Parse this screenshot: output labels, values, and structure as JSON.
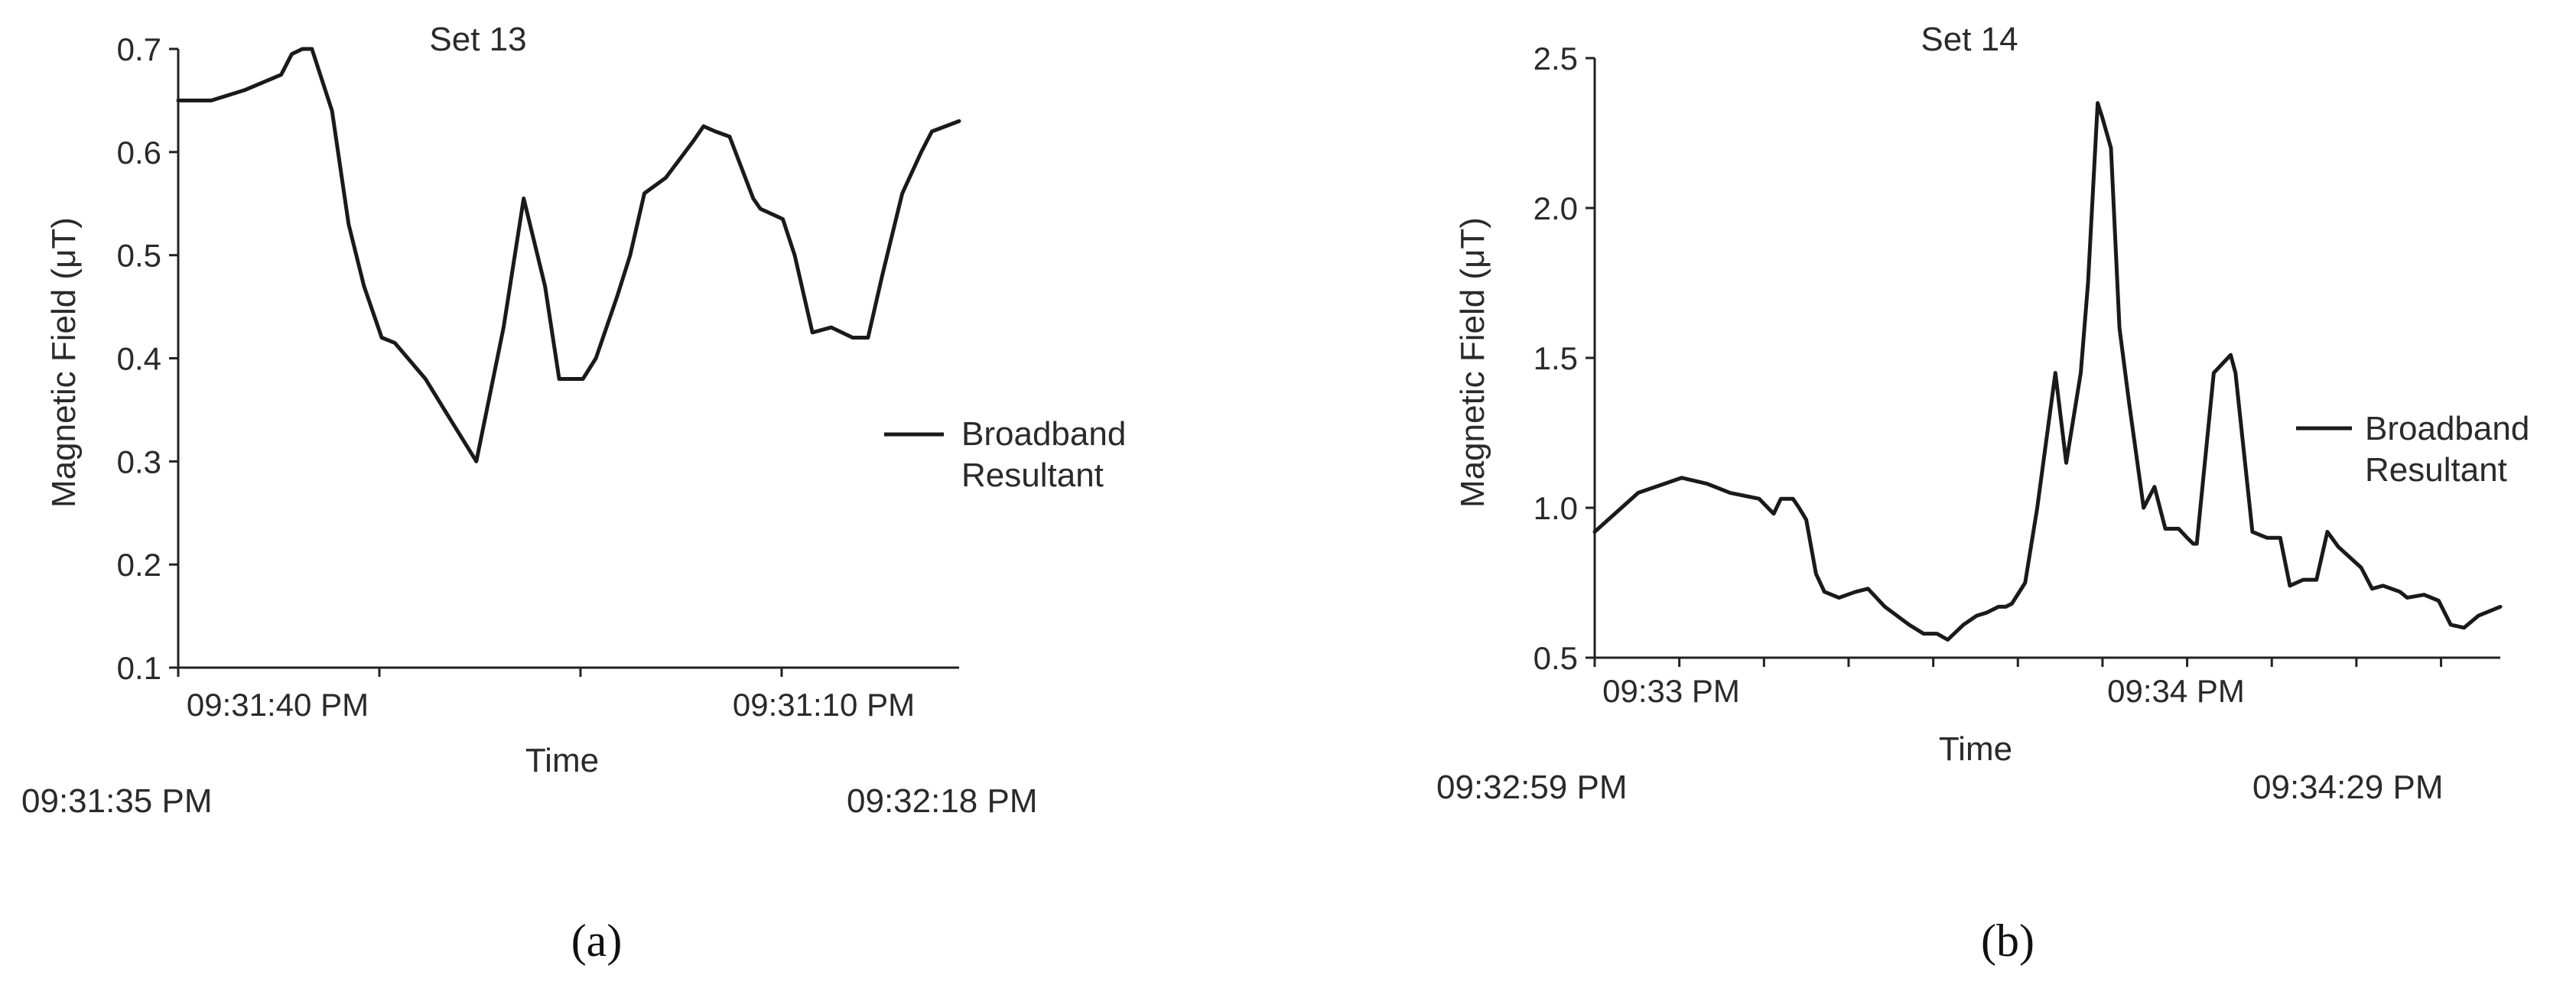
{
  "chart_data": [
    {
      "type": "line",
      "title": "Set 13",
      "xlabel": "Time",
      "ylabel": "Magnetic Field (μT)",
      "ylim": [
        0.1,
        0.7
      ],
      "y_ticks": [
        "0.1",
        "0.2",
        "0.3",
        "0.4",
        "0.5",
        "0.6",
        "0.7"
      ],
      "x_tick_labels": [
        "09:31:40 PM",
        "09:31:10 PM"
      ],
      "time_range": {
        "start": "09:31:35 PM",
        "end": "09:32:18 PM"
      },
      "legend": {
        "line1": "Broadband",
        "line2": "Resultant",
        "placement": "right"
      },
      "caption": "(a)",
      "series": [
        {
          "legend": "Broadband Resultant",
          "x": [
            0,
            2.8,
            5.6,
            8.7,
            9.6,
            10.5,
            11.3,
            13,
            14.4,
            15.7,
            17.2,
            18.3,
            20.9,
            22.5,
            25.2,
            27.5,
            29.2,
            31,
            32.2,
            34.2,
            35.3,
            37.1,
            38.2,
            39.4,
            41.2,
            43.5,
            44.4,
            45.4,
            46.6,
            48.6,
            49.2,
            51.1,
            52.1,
            53.6,
            55.2,
            57,
            58.3,
            59.5,
            61.2,
            62.8,
            63.7,
            66
          ],
          "y": [
            0.65,
            0.65,
            0.66,
            0.675,
            0.695,
            0.7,
            0.7,
            0.64,
            0.53,
            0.47,
            0.42,
            0.415,
            0.38,
            0.35,
            0.3,
            0.43,
            0.555,
            0.47,
            0.38,
            0.38,
            0.4,
            0.46,
            0.5,
            0.56,
            0.575,
            0.61,
            0.625,
            0.62,
            0.615,
            0.555,
            0.545,
            0.535,
            0.5,
            0.425,
            0.43,
            0.42,
            0.42,
            0.48,
            0.56,
            0.6,
            0.62,
            0.63
          ]
        }
      ]
    },
    {
      "type": "line",
      "title": "Set 14",
      "xlabel": "Time",
      "ylabel": "Magnetic Field (μT)",
      "ylim": [
        0.5,
        2.5
      ],
      "y_ticks": [
        "0.5",
        "1.0",
        "1.5",
        "2.0",
        "2.5"
      ],
      "x_tick_labels": [
        "09:33 PM",
        "09:34 PM"
      ],
      "time_range": {
        "start": "09:32:59 PM",
        "end": "09:34:29 PM"
      },
      "legend": {
        "line1": "Broadband",
        "line2": "Resultant",
        "placement": "right"
      },
      "caption": "(b)",
      "series": [
        {
          "legend": "Broadband Resultant",
          "x": [
            0,
            3.6,
            7.2,
            9.3,
            11.2,
            13.6,
            14.8,
            15.4,
            16.4,
            16.9,
            17.5,
            18.3,
            19,
            20.2,
            21.6,
            22.6,
            24,
            26,
            27.2,
            28.3,
            29.2,
            30.5,
            31.6,
            32.4,
            33.4,
            34,
            34.5,
            35.6,
            36.6,
            38.1,
            39,
            40.2,
            40.8,
            41.6,
            42,
            42.7,
            43.4,
            44.2,
            45.4,
            46.3,
            47.2,
            48.3,
            49,
            49.5,
            49.8,
            51.2,
            52.6,
            53,
            54.4,
            55.6,
            56.7,
            57.5,
            58.6,
            59.7,
            60.6,
            61.5,
            63.4,
            64.3,
            65.2,
            66.6,
            67.2,
            68.6,
            69.8,
            70.8,
            71.9,
            73.1,
            74.9
          ],
          "y": [
            0.92,
            1.05,
            1.1,
            1.08,
            1.05,
            1.03,
            0.98,
            1.03,
            1.03,
            1.0,
            0.96,
            0.78,
            0.72,
            0.7,
            0.72,
            0.73,
            0.67,
            0.61,
            0.58,
            0.58,
            0.56,
            0.61,
            0.64,
            0.65,
            0.67,
            0.67,
            0.68,
            0.75,
            1.0,
            1.45,
            1.15,
            1.45,
            1.75,
            2.35,
            2.3,
            2.2,
            1.6,
            1.35,
            1.0,
            1.07,
            0.93,
            0.93,
            0.9,
            0.88,
            0.88,
            1.45,
            1.51,
            1.45,
            0.92,
            0.9,
            0.9,
            0.74,
            0.76,
            0.76,
            0.92,
            0.87,
            0.8,
            0.73,
            0.74,
            0.72,
            0.7,
            0.71,
            0.69,
            0.61,
            0.6,
            0.64,
            0.67
          ]
        }
      ]
    }
  ]
}
